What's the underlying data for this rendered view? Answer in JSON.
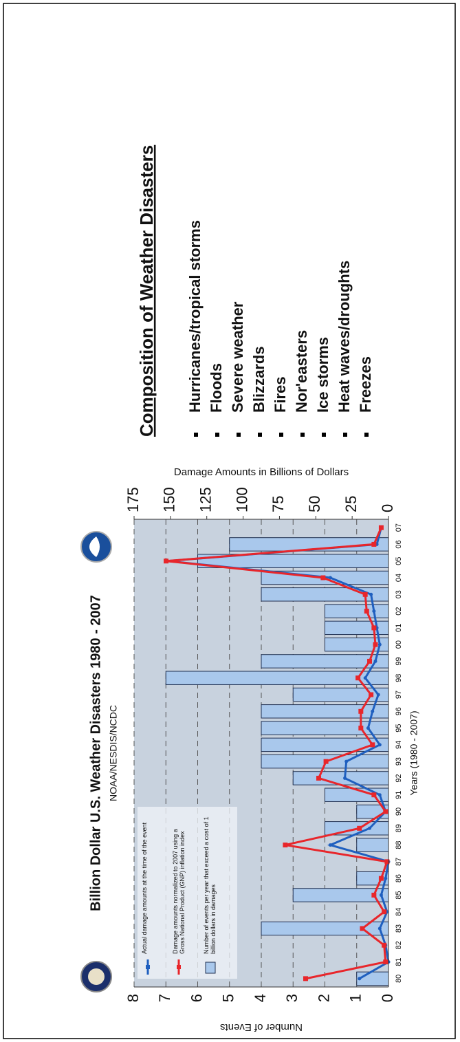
{
  "chart_data": {
    "type": "bar",
    "title": "Billion Dollar U.S. Weather Disasters 1980 - 2007",
    "subtitle": "NOAA/NESDIS/NCDC",
    "x_label": "Years (1980 - 2007)",
    "y_label": "Number of Events",
    "y2_label": "Damage Amounts in Billions of Dollars",
    "categories": [
      "80",
      "81",
      "82",
      "83",
      "84",
      "85",
      "86",
      "87",
      "88",
      "89",
      "90",
      "91",
      "92",
      "93",
      "94",
      "95",
      "96",
      "97",
      "98",
      "99",
      "00",
      "01",
      "02",
      "03",
      "04",
      "05",
      "06",
      "07"
    ],
    "ylim": [
      0,
      8
    ],
    "yticks": [
      0,
      1,
      2,
      3,
      4,
      5,
      6,
      7,
      8
    ],
    "y2lim": [
      0,
      175
    ],
    "y2ticks": [
      0,
      25,
      50,
      75,
      100,
      125,
      150,
      175
    ],
    "grid": true,
    "series": [
      {
        "name": "Number of events per year that exceed a cost of 1 billion dollars in damages",
        "type": "bar",
        "color": "#a9c8ec",
        "values": [
          1,
          0,
          0,
          4,
          0,
          3,
          1,
          0,
          1,
          2,
          1,
          2,
          3,
          4,
          4,
          4,
          4,
          3,
          7,
          4,
          2,
          2,
          2,
          4,
          4,
          6,
          5,
          0
        ]
      },
      {
        "name": "Actual damage amounts at the time of the event",
        "type": "line",
        "axis": "y2",
        "color": "#1f5fbf",
        "values": [
          20,
          0,
          2,
          6,
          1,
          5,
          2,
          0,
          40,
          13,
          2,
          6,
          30,
          29,
          6,
          14,
          11,
          7,
          16,
          9,
          6,
          8,
          10,
          12,
          40,
          152,
          8,
          5
        ]
      },
      {
        "name": "Damage amounts normalized to 2007 using a Gross National Product (GNP) inflation index",
        "type": "line",
        "axis": "y2",
        "color": "#e8262b",
        "values": [
          57,
          2,
          3,
          18,
          3,
          10,
          5,
          1,
          71,
          20,
          2,
          10,
          48,
          43,
          11,
          19,
          19,
          12,
          21,
          13,
          9,
          10,
          15,
          16,
          45,
          153,
          10,
          5
        ]
      }
    ]
  },
  "composition": {
    "title": "Composition of Weather Disasters",
    "items": [
      "Hurricanes/tropical storms",
      "Floods",
      "Severe weather",
      "Blizzards",
      "Fires",
      "Nor'easters",
      "Ice storms",
      "Heat waves/droughts",
      "Freezes"
    ]
  }
}
